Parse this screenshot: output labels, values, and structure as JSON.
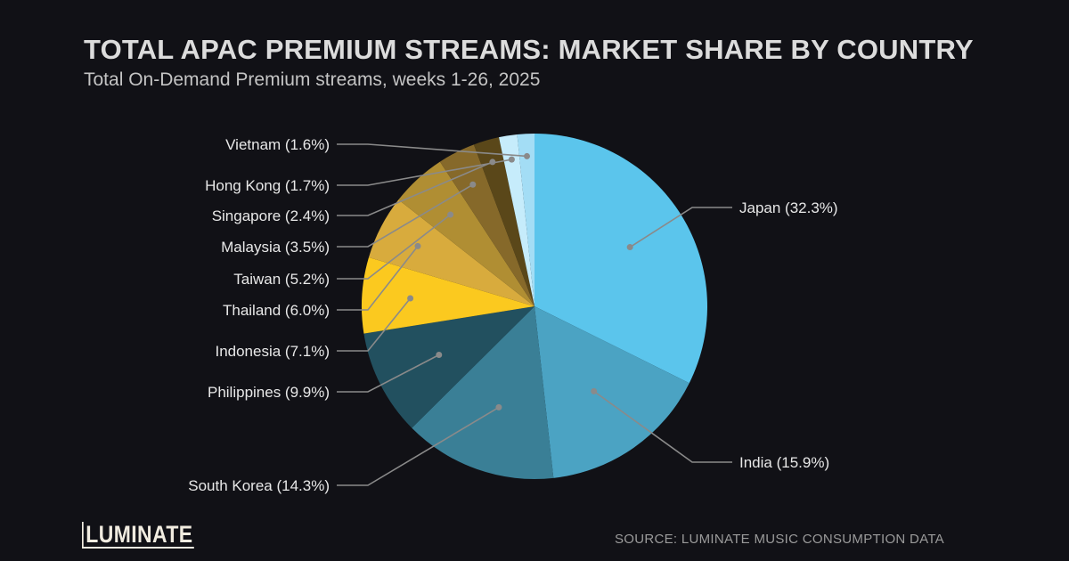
{
  "chart_data": {
    "type": "pie",
    "title": "TOTAL APAC PREMIUM STREAMS: MARKET SHARE BY COUNTRY",
    "subtitle": "Total On-Demand Premium streams, weeks 1-26, 2025",
    "unit": "%",
    "start": "top, clockwise",
    "slices": [
      {
        "label": "Japan (32.3%)",
        "name": "Japan",
        "value": 32.3,
        "color": "#5bc5ec"
      },
      {
        "label": "India (15.9%)",
        "name": "India",
        "value": 15.9,
        "color": "#4ba3c3"
      },
      {
        "label": "South Korea (14.3%)",
        "name": "South Korea",
        "value": 14.3,
        "color": "#3a7f96"
      },
      {
        "label": "Philippines (9.9%)",
        "name": "Philippines",
        "value": 9.9,
        "color": "#22505f"
      },
      {
        "label": "Indonesia (7.1%)",
        "name": "Indonesia",
        "value": 7.1,
        "color": "#fbc91f"
      },
      {
        "label": "Thailand (6.0%)",
        "name": "Thailand",
        "value": 6.0,
        "color": "#d8ab3d"
      },
      {
        "label": "Taiwan (5.2%)",
        "name": "Taiwan",
        "value": 5.2,
        "color": "#b08e33"
      },
      {
        "label": "Malaysia (3.5%)",
        "name": "Malaysia",
        "value": 3.5,
        "color": "#86692a"
      },
      {
        "label": "Singapore (2.4%)",
        "name": "Singapore",
        "value": 2.4,
        "color": "#5a4719"
      },
      {
        "label": "Hong Kong (1.7%)",
        "name": "Hong Kong",
        "value": 1.7,
        "color": "#c6ecfb"
      },
      {
        "label": "Vietnam (1.6%)",
        "name": "Vietnam",
        "value": 1.6,
        "color": "#a3ddf5"
      }
    ],
    "label_color": "#e8e8e8",
    "leader_color": "#8a8a8a",
    "background": "#111116"
  },
  "brand": {
    "logo": "LUMINATE"
  },
  "source": "SOURCE: LUMINATE MUSIC CONSUMPTION DATA"
}
